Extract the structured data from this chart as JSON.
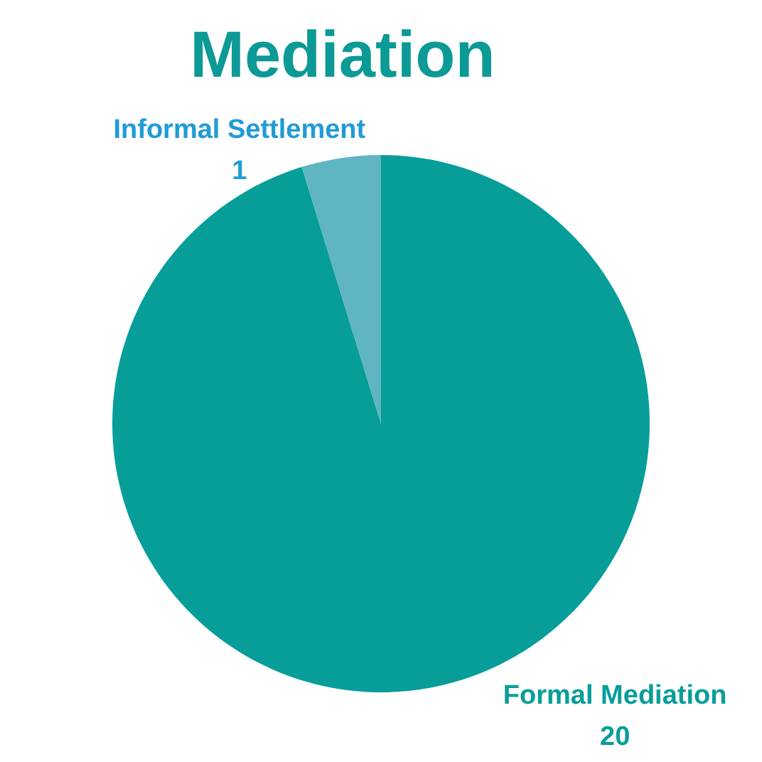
{
  "chart_data": {
    "type": "pie",
    "title": "Mediation",
    "categories": [
      "Formal Mediation",
      "Informal Settlement"
    ],
    "values": [
      20,
      1
    ],
    "colors": [
      "#079e9a",
      "#5fb5c1"
    ],
    "data_labels": true
  }
}
